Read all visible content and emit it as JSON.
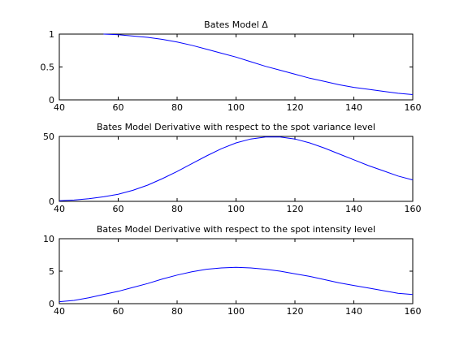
{
  "chart_data": [
    {
      "type": "line",
      "title": "Bates Model Δ",
      "xlabel": "",
      "ylabel": "",
      "xlim": [
        40,
        160
      ],
      "ylim": [
        0,
        1
      ],
      "xticks": [
        "40",
        "60",
        "80",
        "100",
        "120",
        "140",
        "160"
      ],
      "yticks": [
        "0",
        "0.5",
        "1"
      ],
      "grid": false,
      "series": [
        {
          "color": "#0000ff",
          "x": [
            55,
            60,
            65,
            70,
            75,
            80,
            85,
            90,
            95,
            100,
            105,
            110,
            115,
            120,
            125,
            130,
            135,
            140,
            145,
            150,
            155,
            160
          ],
          "y": [
            1.0,
            0.99,
            0.97,
            0.95,
            0.92,
            0.88,
            0.83,
            0.77,
            0.71,
            0.65,
            0.58,
            0.51,
            0.45,
            0.39,
            0.33,
            0.28,
            0.23,
            0.19,
            0.16,
            0.13,
            0.1,
            0.08
          ]
        }
      ]
    },
    {
      "type": "line",
      "title": "Bates Model Derivative with respect to the spot variance level",
      "xlabel": "",
      "ylabel": "",
      "xlim": [
        40,
        160
      ],
      "ylim": [
        0,
        50
      ],
      "xticks": [
        "40",
        "60",
        "80",
        "100",
        "120",
        "140",
        "160"
      ],
      "yticks": [
        "0",
        "50"
      ],
      "grid": false,
      "series": [
        {
          "color": "#0000ff",
          "x": [
            40,
            45,
            50,
            55,
            60,
            65,
            70,
            75,
            80,
            85,
            90,
            95,
            100,
            105,
            110,
            115,
            120,
            125,
            130,
            135,
            140,
            145,
            150,
            155,
            160
          ],
          "y": [
            0.5,
            1.0,
            2.0,
            3.5,
            5.5,
            8.5,
            12.5,
            17.5,
            23.0,
            29.0,
            35.0,
            40.5,
            45.0,
            48.0,
            49.5,
            49.5,
            48.0,
            45.0,
            41.0,
            36.5,
            32.0,
            27.5,
            23.5,
            19.5,
            16.5
          ]
        }
      ]
    },
    {
      "type": "line",
      "title": "Bates Model Derivative with respect to the spot intensity level",
      "xlabel": "",
      "ylabel": "",
      "xlim": [
        40,
        160
      ],
      "ylim": [
        0,
        10
      ],
      "xticks": [
        "40",
        "60",
        "80",
        "100",
        "120",
        "140",
        "160"
      ],
      "yticks": [
        "0",
        "5",
        "10"
      ],
      "grid": false,
      "series": [
        {
          "color": "#0000ff",
          "x": [
            40,
            45,
            50,
            55,
            60,
            65,
            70,
            75,
            80,
            85,
            90,
            95,
            100,
            105,
            110,
            115,
            120,
            125,
            130,
            135,
            140,
            145,
            150,
            155,
            160
          ],
          "y": [
            0.3,
            0.5,
            0.9,
            1.4,
            1.9,
            2.5,
            3.1,
            3.8,
            4.4,
            4.9,
            5.3,
            5.5,
            5.6,
            5.5,
            5.3,
            5.0,
            4.6,
            4.2,
            3.7,
            3.2,
            2.8,
            2.4,
            2.0,
            1.6,
            1.4
          ]
        }
      ]
    }
  ]
}
